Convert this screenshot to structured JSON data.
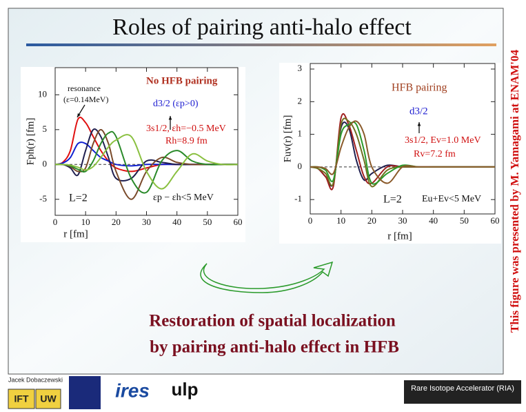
{
  "title": "Roles of pairing anti-halo effect",
  "side_note": "This figure was presented by M. Yamagami at ENAM'04",
  "caption": [
    "Restoration of spatial localization",
    "by pairing anti-halo effect in HFB"
  ],
  "footer": {
    "author": "Jacek Dobaczewski",
    "logos": [
      "IFT",
      "UW",
      "ires",
      "ulp",
      "Rare Isotope Accelerator (RIA)"
    ]
  },
  "chart_data": [
    {
      "type": "line",
      "x_label": "r  [fm]",
      "y_label": "Fph(r)  [fm]",
      "x": [
        0,
        2.5,
        5,
        7.5,
        10,
        12.5,
        15,
        17.5,
        20,
        25,
        30,
        35,
        40,
        45,
        50,
        55,
        60
      ],
      "xlim": [
        0,
        60
      ],
      "xticks": [
        0,
        10,
        20,
        30,
        40,
        50,
        60
      ],
      "ylim": [
        -7.3,
        13.9
      ],
      "yticks": [
        -5,
        0,
        5,
        10
      ],
      "annotations": [
        "No HFB pairing",
        "resonance",
        "(ε=0.14MeV)",
        "d3/2 (εp>0)",
        "3s1/2, εh=−0.5 MeV",
        "Rh=8.9 fm",
        "L=2",
        "εp − εh<5 MeV"
      ],
      "series": [
        {
          "color": "#e01010",
          "values": [
            0,
            0.3,
            2,
            6.5,
            6,
            4,
            2,
            0.5,
            -0.5,
            -1,
            -0.5,
            0,
            0,
            0,
            0,
            0,
            0
          ]
        },
        {
          "color": "#1020d0",
          "values": [
            0,
            0.2,
            1,
            3,
            3,
            2,
            1,
            0.5,
            0,
            -0.2,
            0,
            0,
            0,
            0,
            0,
            0,
            0
          ]
        },
        {
          "color": "#202050",
          "values": [
            0,
            0,
            -0.5,
            -1.5,
            2,
            5,
            4,
            1,
            -2,
            -2,
            0.5,
            0.3,
            0,
            0,
            0,
            0,
            0
          ]
        },
        {
          "color": "#7a4a2a",
          "values": [
            0,
            0,
            -0.3,
            -1,
            -0.5,
            3,
            5,
            3,
            -1,
            -5,
            -1,
            1,
            0.3,
            0,
            0,
            0,
            0
          ]
        },
        {
          "color": "#2a8a2a",
          "values": [
            0,
            0,
            -0.2,
            -0.7,
            -1,
            0.5,
            3,
            4.5,
            4,
            -2,
            -4,
            0.5,
            2,
            0.5,
            0,
            0,
            0
          ]
        },
        {
          "color": "#8ac040",
          "values": [
            0,
            0,
            -0.1,
            -0.4,
            -0.8,
            -0.3,
            1,
            2.5,
            3.5,
            4,
            -1,
            -3.5,
            -1,
            1.5,
            0.5,
            0,
            0
          ]
        }
      ]
    },
    {
      "type": "line",
      "x_label": "r  [fm]",
      "y_label": "Fuv(r)  [fm]",
      "x": [
        0,
        2.5,
        5,
        7.5,
        10,
        12.5,
        15,
        17.5,
        20,
        25,
        30,
        35,
        40,
        45,
        50,
        55,
        60
      ],
      "xlim": [
        0,
        60
      ],
      "xticks": [
        0,
        10,
        20,
        30,
        40,
        50,
        60
      ],
      "ylim": [
        -1.44,
        3.17
      ],
      "yticks": [
        -1,
        0,
        1,
        2,
        3
      ],
      "annotations": [
        "HFB pairing",
        "d3/2",
        "3s1/2, Ev=1.0 MeV",
        "Rv=7.2 fm",
        "L=2",
        "Eu+Ev<5 MeV"
      ],
      "series": [
        {
          "color": "#202050",
          "values": [
            0,
            -0.05,
            -0.3,
            -0.5,
            1.2,
            1.2,
            0.2,
            -0.4,
            -0.2,
            0.05,
            0,
            0,
            0,
            0,
            0,
            0,
            0
          ]
        },
        {
          "color": "#a02020",
          "values": [
            0,
            -0.05,
            -0.3,
            -0.6,
            1.5,
            1.3,
            0.5,
            -0.3,
            -0.5,
            0,
            0,
            0,
            0,
            0,
            0,
            0,
            0
          ]
        },
        {
          "color": "#707020",
          "values": [
            0,
            -0.05,
            -0.2,
            -0.5,
            1.3,
            1.4,
            1,
            0.2,
            -0.6,
            -0.1,
            0,
            0,
            0,
            0,
            0,
            0,
            0
          ]
        },
        {
          "color": "#2a9a2a",
          "values": [
            0,
            0,
            -0.1,
            -0.4,
            1.0,
            1.3,
            1.3,
            0.5,
            -0.5,
            -0.2,
            0.05,
            0,
            0,
            0,
            0,
            0,
            0
          ]
        },
        {
          "color": "#8a5a2a",
          "values": [
            0,
            0,
            -0.05,
            -0.2,
            0.6,
            1.2,
            1.4,
            1.0,
            0,
            -0.5,
            0,
            0,
            0,
            0,
            0,
            0,
            0
          ]
        }
      ]
    }
  ]
}
